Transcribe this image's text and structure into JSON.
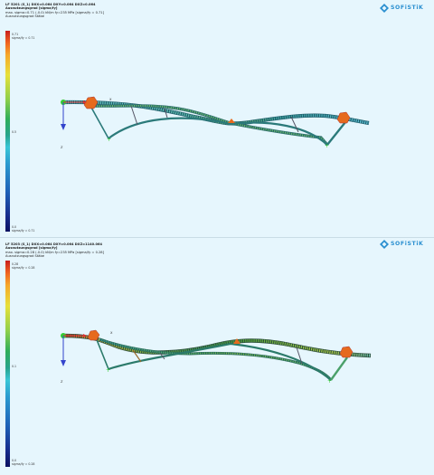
{
  "panels": [
    {
      "header": {
        "line1": "LF 5201 (S_1)  DXX=0.064  DXY=0.064  DXZ=0.064",
        "line2": "Ausnutzungsgrad [sigma/fy]",
        "line3": "max. sigma=0.71 (-0.0) kN/m  fy=235 MPa  [sigma/fy = 0.71]",
        "line4": "Ausnutzungsgrad Stäbe"
      },
      "legend": {
        "top": "0.71",
        "top_sub": "sigma/fy = 0.71",
        "mid": "0.5",
        "bottom": "0.0",
        "bottom_sub": "sigma/fy = 0.71"
      },
      "axis": {
        "x": "X",
        "z": "Z"
      }
    },
    {
      "header": {
        "line1": "LF 5203 (S_1)  DXX=0.064  DXY=0.064  DXZ=1140.064",
        "line2": "Ausnutzungsgrad [sigma/fy]",
        "line3": "max. sigma=0.28 (-0.0) kN/m  fy=235 MPa  [sigma/fy = 0.28]",
        "line4": "Ausnutzungsgrad Stäbe"
      },
      "legend": {
        "top": "0.28",
        "top_sub": "sigma/fy = 0.28",
        "mid": "0.1",
        "bottom": "0.0",
        "bottom_sub": "sigma/fy = 0.28"
      },
      "axis": {
        "x": "X",
        "z": "Z"
      }
    }
  ],
  "logo": {
    "text": "SOFiSTiK"
  },
  "colors": {
    "background": "#e6f6fd",
    "accent": "#2a8fd0",
    "support": "#e66a1e",
    "axis_x": "#d33",
    "axis_z": "#3344cc",
    "node": "#33cc33"
  }
}
